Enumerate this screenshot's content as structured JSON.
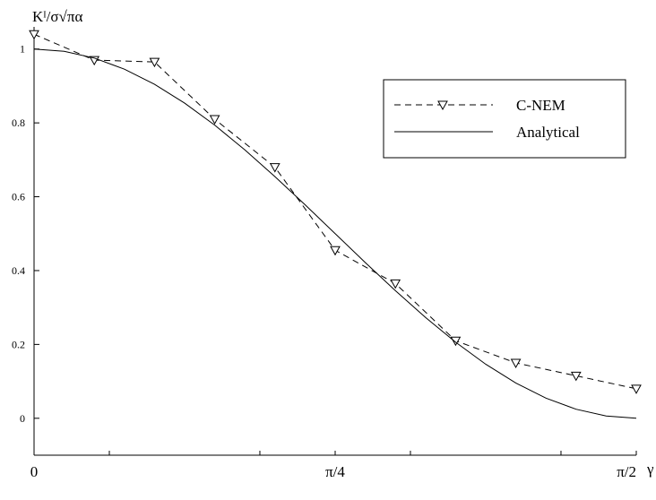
{
  "chart_data": {
    "type": "line",
    "ylabel": "Kᴵ/σ√πα",
    "xlabel": "γ",
    "xlim": [
      0,
      1.5708
    ],
    "ylim": [
      -0.1,
      1.06
    ],
    "x_ticks": [
      {
        "value": 0,
        "label": "0"
      },
      {
        "value": 0.7854,
        "label": "π/4"
      },
      {
        "value": 1.5708,
        "label": "π/2"
      }
    ],
    "x_minor_ticks": [
      0.7854,
      1.5708
    ],
    "y_ticks": [
      {
        "value": 0,
        "label": "0"
      },
      {
        "value": 0.2,
        "label": "0.2"
      },
      {
        "value": 0.4,
        "label": "0.4"
      },
      {
        "value": 0.6,
        "label": "0.6"
      },
      {
        "value": 0.8,
        "label": "0.8"
      },
      {
        "value": 1.0,
        "label": "1"
      }
    ],
    "grid": false,
    "legend_position": "top-right",
    "series": [
      {
        "name": "C-NEM",
        "style": "dashed",
        "marker": "triangle-down",
        "x": [
          0,
          0.1571,
          0.3142,
          0.4712,
          0.6283,
          0.7854,
          0.9425,
          1.0996,
          1.2566,
          1.4137,
          1.5708
        ],
        "y": [
          1.04,
          0.97,
          0.965,
          0.81,
          0.68,
          0.455,
          0.365,
          0.21,
          0.15,
          0.115,
          0.08
        ]
      },
      {
        "name": "Analytical",
        "style": "solid",
        "marker": "none",
        "function": "cos^2(gamma)",
        "x": [
          0,
          0.0785,
          0.1571,
          0.2356,
          0.3142,
          0.3927,
          0.4712,
          0.5498,
          0.6283,
          0.7069,
          0.7854,
          0.8639,
          0.9425,
          1.021,
          1.0996,
          1.1781,
          1.2566,
          1.3352,
          1.4137,
          1.4923,
          1.5708
        ],
        "y": [
          1.0,
          0.9938,
          0.9755,
          0.9455,
          0.9045,
          0.8536,
          0.7939,
          0.727,
          0.6545,
          0.5782,
          0.5,
          0.4218,
          0.3455,
          0.273,
          0.2061,
          0.1464,
          0.0955,
          0.0545,
          0.0245,
          0.0062,
          0.0
        ]
      }
    ]
  }
}
